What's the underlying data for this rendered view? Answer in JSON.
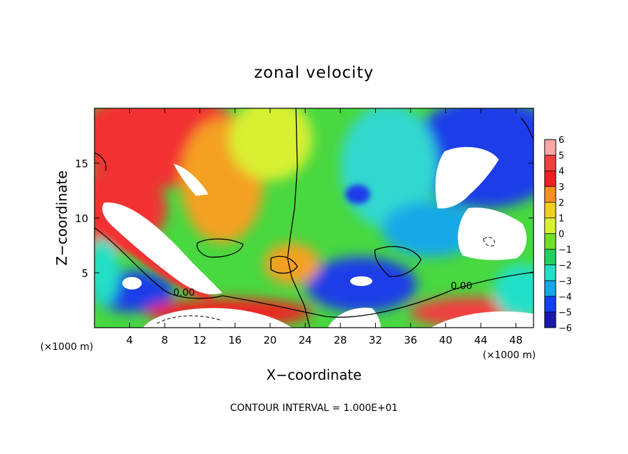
{
  "chart_data": {
    "type": "heatmap",
    "title": "zonal velocity",
    "xlabel": "X−coordinate",
    "ylabel": "Z−coordinate",
    "x_unit_left": "(×1000 m)",
    "x_unit_right": "(×1000 m)",
    "xlim": [
      0,
      50
    ],
    "ylim": [
      0,
      20
    ],
    "x_ticks": [
      4,
      8,
      12,
      16,
      20,
      24,
      28,
      32,
      36,
      40,
      44,
      48
    ],
    "y_ticks": [
      5,
      10,
      15
    ],
    "colorbar": {
      "levels": [
        6,
        5,
        4,
        3,
        2,
        1,
        0,
        -1,
        -2,
        -3,
        -4,
        -5,
        -6
      ],
      "labels": [
        "6",
        "5",
        "4",
        "3",
        "2",
        "1",
        "0",
        "−1",
        "−2",
        "−3",
        "−4",
        "−5",
        "−6"
      ],
      "colors": [
        "#f8a6a6",
        "#f04040",
        "#f02020",
        "#f89020",
        "#f0d020",
        "#d8f030",
        "#70e020",
        "#20d060",
        "#20e0c8",
        "#10a8e8",
        "#1040f0",
        "#1818b0",
        "#5010a0"
      ]
    },
    "contour_labels": [
      "0.00",
      "0.00"
    ],
    "footer": "CONTOUR INTERVAL = 1.000E+01"
  }
}
